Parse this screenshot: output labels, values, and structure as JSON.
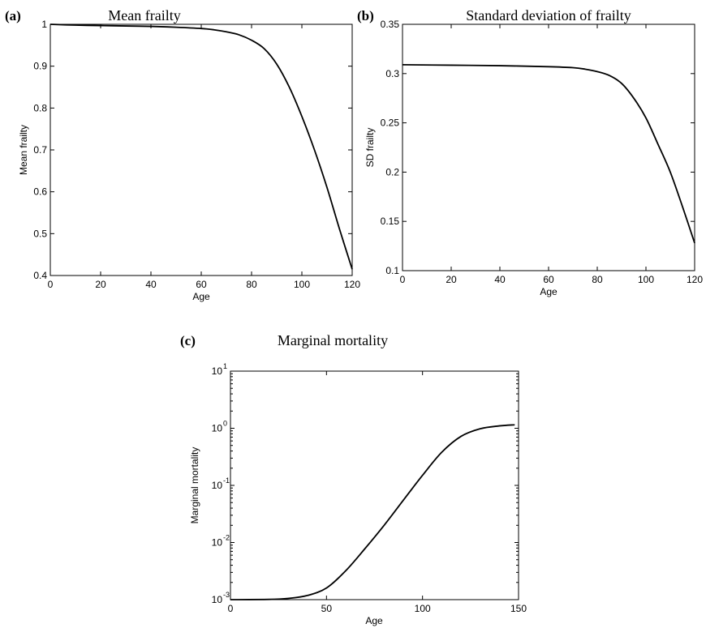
{
  "chart_data": [
    {
      "panel": "(a)",
      "type": "line",
      "title": "Mean frailty",
      "xlabel": "Age",
      "ylabel": "Mean frailty",
      "xlim": [
        0,
        120
      ],
      "ylim": [
        0.4,
        1
      ],
      "xticks": [
        0,
        20,
        40,
        60,
        80,
        100,
        120
      ],
      "yticks": [
        0.4,
        0.5,
        0.6,
        0.7,
        0.8,
        0.9,
        1
      ],
      "ytick_labels": [
        "0.4",
        "0.5",
        "0.6",
        "0.7",
        "0.8",
        "0.9",
        "1"
      ],
      "yscale": "linear",
      "grid": false,
      "series": [
        {
          "x": [
            0,
            10,
            20,
            30,
            40,
            50,
            60,
            65,
            70,
            75,
            80,
            85,
            90,
            95,
            100,
            105,
            110,
            115,
            120
          ],
          "y": [
            1.0,
            0.998,
            0.997,
            0.996,
            0.995,
            0.993,
            0.99,
            0.987,
            0.982,
            0.975,
            0.962,
            0.942,
            0.905,
            0.85,
            0.78,
            0.7,
            0.61,
            0.51,
            0.415
          ]
        }
      ]
    },
    {
      "panel": "(b)",
      "type": "line",
      "title": "Standard deviation of frailty",
      "xlabel": "Age",
      "ylabel": "SD frailty",
      "xlim": [
        0,
        120
      ],
      "ylim": [
        0.1,
        0.35
      ],
      "xticks": [
        0,
        20,
        40,
        60,
        80,
        100,
        120
      ],
      "yticks": [
        0.1,
        0.15,
        0.2,
        0.25,
        0.3,
        0.35
      ],
      "ytick_labels": [
        "0.1",
        "0.15",
        "0.2",
        "0.25",
        "0.3",
        "0.35"
      ],
      "yscale": "linear",
      "grid": false,
      "series": [
        {
          "x": [
            0,
            20,
            40,
            60,
            70,
            75,
            80,
            85,
            90,
            95,
            100,
            105,
            110,
            115,
            120
          ],
          "y": [
            0.309,
            0.3085,
            0.308,
            0.307,
            0.306,
            0.3045,
            0.302,
            0.298,
            0.29,
            0.275,
            0.255,
            0.228,
            0.2,
            0.165,
            0.128
          ]
        }
      ]
    },
    {
      "panel": "(c)",
      "type": "line",
      "title": "Marginal mortality",
      "xlabel": "Age",
      "ylabel": "Marginal mortality",
      "xlim": [
        0,
        150
      ],
      "ylim": [
        0.001,
        10
      ],
      "xticks": [
        0,
        50,
        100,
        150
      ],
      "yticks": [
        0.001,
        0.01,
        0.1,
        1,
        10
      ],
      "ytick_exponents": [
        "-3",
        "-2",
        "-1",
        "0",
        "1"
      ],
      "ytick_base": "10",
      "yscale": "log",
      "grid": false,
      "series": [
        {
          "x": [
            0,
            20,
            30,
            40,
            50,
            60,
            70,
            80,
            90,
            100,
            110,
            120,
            130,
            140,
            148
          ],
          "y": [
            0.001,
            0.00101,
            0.00105,
            0.00118,
            0.0016,
            0.0032,
            0.0078,
            0.02,
            0.055,
            0.15,
            0.38,
            0.72,
            0.98,
            1.1,
            1.15
          ]
        }
      ]
    }
  ]
}
